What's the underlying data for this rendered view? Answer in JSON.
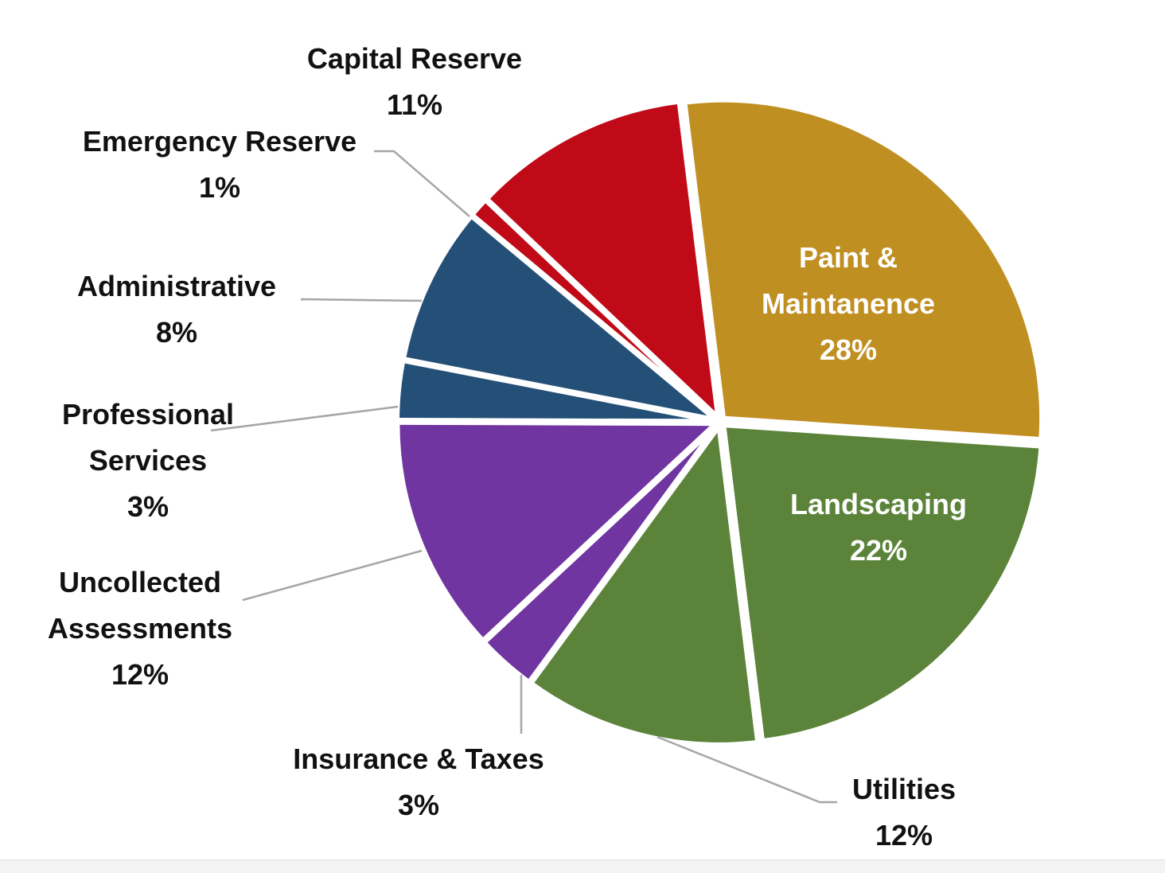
{
  "chart_data": {
    "type": "pie",
    "title": "",
    "slices": [
      {
        "label": "Paint & Maintanence",
        "lines": [
          "Paint &",
          "Maintanence",
          "28%"
        ],
        "value": 28,
        "color": "#c08f22",
        "label_color": "#ffffff"
      },
      {
        "label": "Landscaping",
        "lines": [
          "Landscaping",
          "22%"
        ],
        "value": 22,
        "color": "#5b843a",
        "label_color": "#ffffff"
      },
      {
        "label": "Utilities",
        "lines": [
          "Utilities",
          "12%"
        ],
        "value": 12,
        "color": "#5b843a",
        "label_color": "#111111"
      },
      {
        "label": "Insurance & Taxes",
        "lines": [
          "Insurance & Taxes",
          "3%"
        ],
        "value": 3,
        "color": "#7035a0",
        "label_color": "#111111"
      },
      {
        "label": "Uncollected Assessments",
        "lines": [
          "Uncollected",
          "Assessments",
          "12%"
        ],
        "value": 12,
        "color": "#7035a0",
        "label_color": "#111111"
      },
      {
        "label": "Professional Services",
        "lines": [
          "Professional",
          "Services",
          "3%"
        ],
        "value": 3,
        "color": "#245078",
        "label_color": "#111111"
      },
      {
        "label": "Administrative",
        "lines": [
          "Administrative",
          "8%"
        ],
        "value": 8,
        "color": "#245078",
        "label_color": "#111111"
      },
      {
        "label": "Emergency Reserve",
        "lines": [
          "Emergency Reserve",
          "1%"
        ],
        "value": 1,
        "color": "#c00a17",
        "label_color": "#111111"
      },
      {
        "label": "Capital Reserve",
        "lines": [
          "Capital Reserve",
          "11%"
        ],
        "value": 11,
        "color": "#c00a17",
        "label_color": "#111111"
      }
    ],
    "legend": "none",
    "grid": false
  }
}
